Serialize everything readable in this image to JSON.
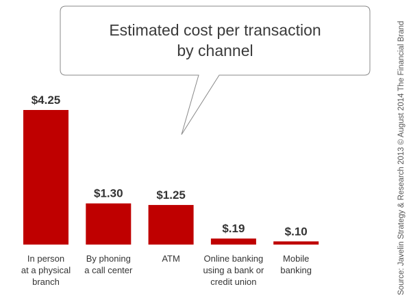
{
  "chart_data": {
    "type": "bar",
    "title": [
      "Estimated cost per transaction",
      "by channel"
    ],
    "categories": [
      [
        "In person",
        "at a physical",
        "branch"
      ],
      [
        "By phoning",
        "a call center"
      ],
      [
        "ATM"
      ],
      [
        "Online banking",
        "using a bank or",
        "credit union"
      ],
      [
        "Mobile",
        "banking"
      ]
    ],
    "values": [
      4.25,
      1.3,
      1.25,
      0.19,
      0.1
    ],
    "value_labels": [
      "$4.25",
      "$1.30",
      "$1.25",
      "$.19",
      "$.10"
    ],
    "ylim": [
      0,
      4.25
    ],
    "grid": false,
    "axes_visible": false,
    "bar_color": "#bf0000",
    "source": "Source: Javelin Strategy & Research 2013 © August 2014 The Financial Brand"
  }
}
